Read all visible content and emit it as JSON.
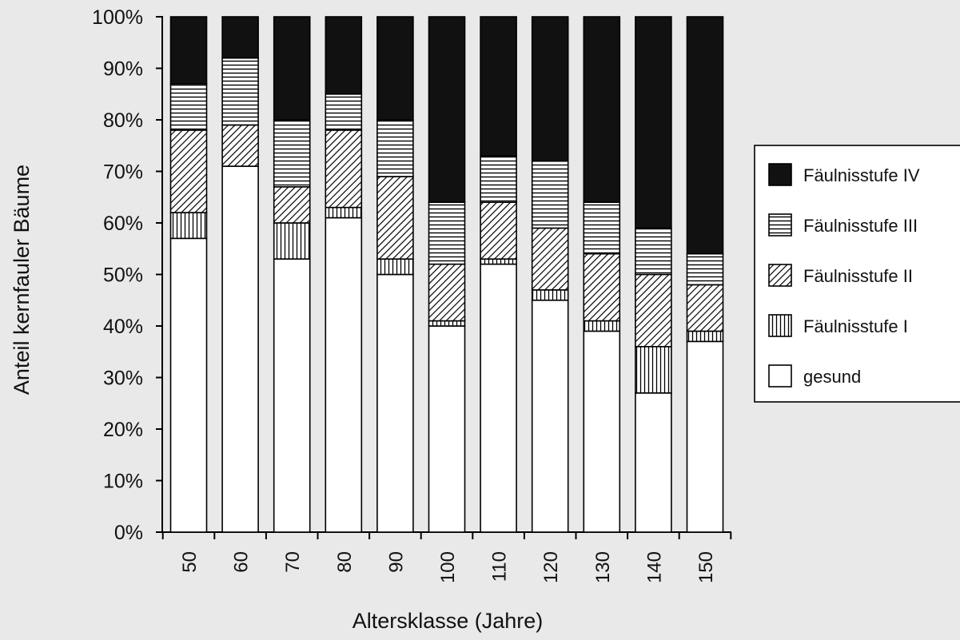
{
  "chart_data": {
    "type": "bar",
    "stacked": true,
    "normalized": true,
    "title": "",
    "xlabel": "Altersklasse (Jahre)",
    "ylabel": "Anteil  kernfauler Bäume",
    "ylim": [
      0,
      100
    ],
    "yticks": [
      "0%",
      "10%",
      "20%",
      "30%",
      "40%",
      "50%",
      "60%",
      "70%",
      "80%",
      "90%",
      "100%"
    ],
    "categories": [
      "50",
      "60",
      "70",
      "80",
      "90",
      "100",
      "110",
      "120",
      "130",
      "140",
      "150"
    ],
    "series": [
      {
        "name": "gesund",
        "key": "gesund",
        "values": [
          57,
          71,
          53,
          61,
          50,
          40,
          52,
          45,
          39,
          27,
          37
        ]
      },
      {
        "name": "Fäulnisstufe I",
        "key": "I",
        "values": [
          5,
          0,
          7,
          2,
          3,
          1,
          1,
          2,
          2,
          9,
          2
        ]
      },
      {
        "name": "Fäulnisstufe II",
        "key": "II",
        "values": [
          16,
          8,
          7,
          15,
          16,
          11,
          11,
          12,
          13,
          14,
          9
        ]
      },
      {
        "name": "Fäulnisstufe III",
        "key": "III",
        "values": [
          9,
          13,
          13,
          7,
          11,
          12,
          9,
          13,
          10,
          9,
          6
        ]
      },
      {
        "name": "Fäulnisstufe IV",
        "key": "IV",
        "values": [
          13,
          8,
          20,
          15,
          20,
          36,
          27,
          28,
          36,
          41,
          46
        ]
      }
    ],
    "legend": {
      "position": "right",
      "entries": [
        "Fäulnisstufe IV",
        "Fäulnisstufe III",
        "Fäulnisstufe II",
        "Fäulnisstufe I",
        "gesund"
      ]
    },
    "grid": false
  }
}
